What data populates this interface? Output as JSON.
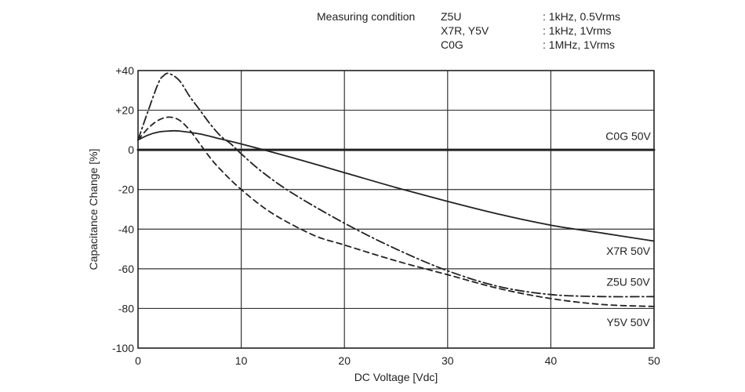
{
  "measuring": {
    "title": "Measuring condition",
    "rows": [
      {
        "cls": "Z5U",
        "cond": ": 1kHz, 0.5Vrms"
      },
      {
        "cls": "X7R, Y5V",
        "cond": ": 1kHz, 1Vrms"
      },
      {
        "cls": "C0G",
        "cond": ": 1MHz, 1Vrms"
      }
    ]
  },
  "chart_data": {
    "type": "line",
    "xlabel": "DC Voltage [Vdc]",
    "ylabel": "Capacitance Change [%]",
    "xlim": [
      0,
      50
    ],
    "ylim": [
      -100,
      40
    ],
    "xticks": [
      0,
      10,
      20,
      30,
      40,
      50
    ],
    "xtick_labels": [
      "0",
      "10",
      "20",
      "30",
      "40",
      "50"
    ],
    "yticks": [
      40,
      20,
      0,
      -20,
      -40,
      -60,
      -80,
      -100
    ],
    "ytick_labels": [
      "+40",
      "+20",
      "0",
      "-20",
      "-40",
      "-60",
      "-80",
      "-100"
    ],
    "grid": true,
    "series": [
      {
        "name": "C0G 50V",
        "style": "solid-heavy",
        "x": [
          0,
          50
        ],
        "y": [
          0,
          0
        ]
      },
      {
        "name": "X7R 50V",
        "style": "solid",
        "x": [
          0,
          1,
          2,
          3,
          4,
          6,
          8,
          10,
          15,
          20,
          25,
          30,
          35,
          40,
          45,
          50
        ],
        "y": [
          5,
          7.5,
          9,
          9.5,
          9.5,
          8,
          5.5,
          3,
          -4,
          -11.5,
          -19,
          -26,
          -32.5,
          -38,
          -42,
          -46
        ]
      },
      {
        "name": "Z5U 50V",
        "style": "dash-dot",
        "x": [
          0,
          1,
          2,
          2.5,
          3,
          4,
          5,
          6,
          7,
          8,
          9,
          10,
          12,
          15,
          20,
          25,
          30,
          35,
          40,
          45,
          50
        ],
        "y": [
          5,
          20,
          34,
          37.5,
          38.5,
          35,
          27,
          20,
          13,
          7,
          3,
          -2,
          -11,
          -22,
          -37,
          -50,
          -61,
          -69,
          -73,
          -74,
          -74
        ]
      },
      {
        "name": "Y5V 50V",
        "style": "dashed",
        "x": [
          0,
          1,
          2,
          3,
          4,
          5,
          6,
          7,
          8,
          10,
          13,
          17,
          20,
          25,
          30,
          35,
          40,
          45,
          50
        ],
        "y": [
          5,
          11,
          15,
          16.5,
          15,
          10,
          3,
          -4,
          -10,
          -20,
          -32,
          -43,
          -48,
          -56,
          -63,
          -70,
          -75,
          -78,
          -79
        ]
      }
    ],
    "annotations": [
      {
        "text": "C0G 50V",
        "x": 47.5,
        "y": 5
      },
      {
        "text": "X7R 50V",
        "x": 47.5,
        "y": -53
      },
      {
        "text": "Z5U 50V",
        "x": 47.5,
        "y": -68.5
      },
      {
        "text": "Y5V 50V",
        "x": 47.5,
        "y": -89
      }
    ]
  }
}
